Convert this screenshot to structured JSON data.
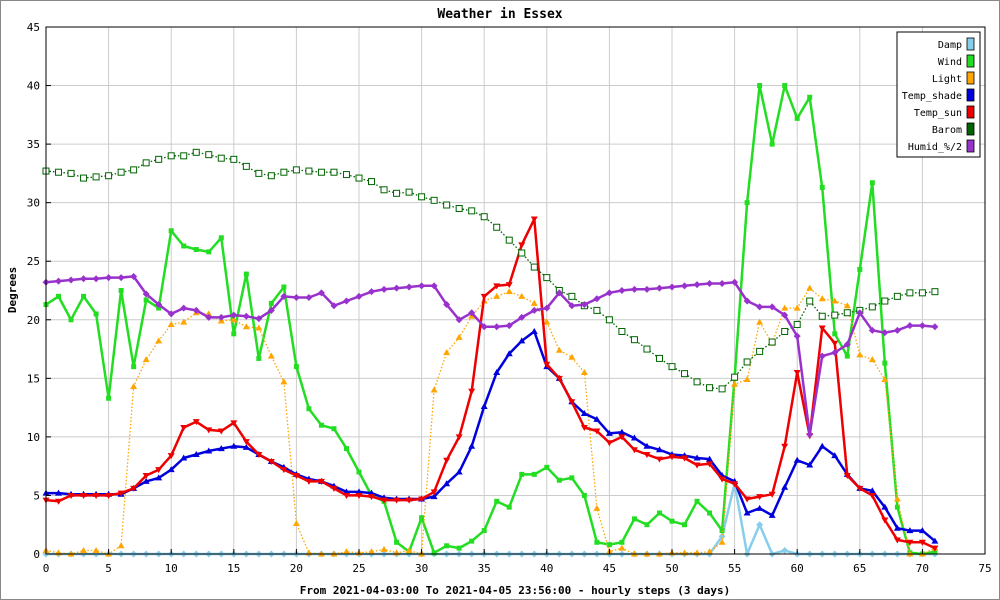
{
  "chart_data": {
    "type": "line",
    "title": "Weather in Essex",
    "xlabel": "From 2021-04-03:00 To 2021-04-05 23:56:00 - hourly steps (3 days)",
    "ylabel": "Degrees",
    "xlim": [
      0,
      75
    ],
    "ylim": [
      0,
      45
    ],
    "xticks": [
      0,
      5,
      10,
      15,
      20,
      25,
      30,
      35,
      40,
      45,
      50,
      55,
      60,
      65,
      70,
      75
    ],
    "yticks": [
      0,
      5,
      10,
      15,
      20,
      25,
      30,
      35,
      40,
      45
    ],
    "grid": true,
    "legend": "top-right",
    "x": [
      0,
      1,
      2,
      3,
      4,
      5,
      6,
      7,
      8,
      9,
      10,
      11,
      12,
      13,
      14,
      15,
      16,
      17,
      18,
      19,
      20,
      21,
      22,
      23,
      24,
      25,
      26,
      27,
      28,
      29,
      30,
      31,
      32,
      33,
      34,
      35,
      36,
      37,
      38,
      39,
      40,
      41,
      42,
      43,
      44,
      45,
      46,
      47,
      48,
      49,
      50,
      51,
      52,
      53,
      54,
      55,
      56,
      57,
      58,
      59,
      60,
      61,
      62,
      63,
      64,
      65,
      66,
      67,
      68,
      69,
      70,
      71
    ],
    "series": [
      {
        "name": "Damp",
        "color": "#87ceeb",
        "marker": "diamond",
        "style": "solid",
        "values": [
          0,
          0,
          0,
          0,
          0,
          0,
          0,
          0,
          0,
          0,
          0,
          0,
          0,
          0,
          0,
          0,
          0,
          0,
          0,
          0,
          0,
          0,
          0,
          0,
          0,
          0,
          0,
          0,
          0,
          0,
          0,
          0,
          0,
          0,
          0,
          0,
          0,
          0,
          0,
          0,
          0,
          0,
          0,
          0,
          0,
          0,
          0,
          0,
          0,
          0,
          0,
          0,
          0,
          0,
          1.5,
          6,
          0,
          2.5,
          0,
          0.3,
          0,
          0,
          0,
          0,
          0,
          0,
          0,
          0,
          0,
          0,
          0,
          0
        ]
      },
      {
        "name": "Wind",
        "color": "#22dd22",
        "marker": "square",
        "style": "solid",
        "values": [
          21.3,
          22,
          20,
          22,
          20.5,
          13.3,
          22.5,
          16,
          21.7,
          21,
          27.6,
          26.3,
          26,
          25.8,
          27,
          18.8,
          23.9,
          16.7,
          21.4,
          22.8,
          16,
          12.4,
          11,
          10.7,
          9,
          7,
          5,
          4.5,
          1,
          0.2,
          3.1,
          0.1,
          0.7,
          0.5,
          1.1,
          2,
          4.5,
          4,
          6.8,
          6.8,
          7.4,
          6.3,
          6.5,
          5,
          1,
          0.8,
          1,
          3,
          2.5,
          3.5,
          2.8,
          2.5,
          4.5,
          3.5,
          2,
          15,
          30,
          40,
          35,
          40,
          37.2,
          39,
          31.3,
          18.8,
          16.9,
          24.3,
          31.7,
          16.3,
          4,
          0.1,
          0,
          0.2
        ]
      },
      {
        "name": "Light",
        "color": "#ffa500",
        "marker": "triangle",
        "style": "dotted",
        "values": [
          0.3,
          0.1,
          0,
          0.3,
          0.3,
          0,
          0.7,
          14.3,
          16.6,
          18.2,
          19.6,
          19.8,
          20.6,
          20.5,
          19.9,
          20,
          19.4,
          19.3,
          16.9,
          14.7,
          2.6,
          0.1,
          0,
          0,
          0.2,
          0.1,
          0.2,
          0.4,
          0.1,
          0.3,
          0,
          14,
          17.2,
          18.5,
          20.3,
          21.6,
          22,
          22.4,
          22,
          21.4,
          19.8,
          17.4,
          16.8,
          15.5,
          3.9,
          0.2,
          0.5,
          0,
          0,
          0,
          0.1,
          0.1,
          0.1,
          0.2,
          1,
          14.5,
          14.9,
          19.8,
          18,
          21,
          21,
          22.7,
          21.8,
          21.6,
          21.2,
          17,
          16.6,
          14.9,
          4.7,
          0,
          0,
          0.5
        ]
      },
      {
        "name": "Temp_shade",
        "color": "#0000dd",
        "marker": "triangle",
        "style": "solid",
        "values": [
          5.2,
          5.2,
          5.1,
          5.1,
          5.1,
          5.1,
          5.1,
          5.6,
          6.2,
          6.5,
          7.2,
          8.2,
          8.5,
          8.8,
          9,
          9.2,
          9.1,
          8.5,
          7.9,
          7.4,
          6.8,
          6.4,
          6.2,
          5.8,
          5.3,
          5.3,
          5.2,
          4.8,
          4.7,
          4.7,
          4.7,
          4.9,
          6,
          7,
          9.2,
          12.6,
          15.5,
          17.1,
          18.2,
          19,
          16,
          15,
          13,
          12,
          11.5,
          10.3,
          10.4,
          9.9,
          9.2,
          8.9,
          8.5,
          8.4,
          8.2,
          8.1,
          6.7,
          6.2,
          3.5,
          3.9,
          3.3,
          5.7,
          8,
          7.6,
          9.2,
          8.4,
          6.8,
          5.6,
          5.4,
          4,
          2.2,
          2,
          2,
          1.1
        ]
      },
      {
        "name": "Temp_sun",
        "color": "#ee0000",
        "marker": "triangle-down",
        "style": "solid",
        "values": [
          4.6,
          4.5,
          5,
          5,
          5,
          5,
          5.2,
          5.6,
          6.7,
          7.2,
          8.4,
          10.8,
          11.3,
          10.6,
          10.5,
          11.2,
          9.6,
          8.5,
          7.9,
          7.2,
          6.7,
          6.2,
          6.2,
          5.6,
          5,
          5,
          4.9,
          4.6,
          4.6,
          4.6,
          4.7,
          5.3,
          8,
          10,
          13.9,
          22,
          22.9,
          23,
          26.4,
          28.6,
          16.2,
          15,
          13,
          10.8,
          10.5,
          9.5,
          10,
          8.9,
          8.5,
          8.1,
          8.3,
          8.2,
          7.6,
          7.7,
          6.4,
          6,
          4.7,
          4.9,
          5.1,
          9.2,
          15.5,
          10.1,
          19.3,
          18,
          6.7,
          5.6,
          5,
          2.9,
          1.2,
          1,
          1,
          0.5
        ]
      },
      {
        "name": "Barom",
        "color": "#006400",
        "marker": "square-open",
        "style": "dotted",
        "values": [
          32.7,
          32.6,
          32.5,
          32.1,
          32.2,
          32.3,
          32.6,
          32.8,
          33.4,
          33.7,
          34,
          34,
          34.3,
          34.1,
          33.8,
          33.7,
          33.1,
          32.5,
          32.3,
          32.6,
          32.8,
          32.7,
          32.6,
          32.6,
          32.4,
          32.1,
          31.8,
          31.1,
          30.8,
          30.9,
          30.5,
          30.2,
          29.8,
          29.5,
          29.3,
          28.8,
          27.9,
          26.8,
          25.7,
          24.5,
          23.6,
          22.5,
          22,
          21.2,
          20.8,
          20,
          19,
          18.3,
          17.5,
          16.7,
          16,
          15.4,
          14.7,
          14.2,
          14.1,
          15.1,
          16.4,
          17.3,
          18.1,
          19,
          19.6,
          21.6,
          20.3,
          20.4,
          20.6,
          20.8,
          21.1,
          21.6,
          22,
          22.3,
          22.3,
          22.4
        ]
      },
      {
        "name": "Humid_%/2",
        "color": "#9932cc",
        "marker": "diamond",
        "style": "solid",
        "values": [
          23.2,
          23.3,
          23.4,
          23.5,
          23.5,
          23.6,
          23.6,
          23.7,
          22.2,
          21.3,
          20.5,
          21,
          20.8,
          20.2,
          20.2,
          20.4,
          20.3,
          20.1,
          20.8,
          22,
          21.9,
          21.9,
          22.3,
          21.2,
          21.6,
          22,
          22.4,
          22.6,
          22.7,
          22.8,
          22.9,
          22.9,
          21.3,
          20,
          20.6,
          19.4,
          19.4,
          19.5,
          20.2,
          20.8,
          21,
          22.3,
          21.2,
          21.3,
          21.8,
          22.3,
          22.5,
          22.6,
          22.6,
          22.7,
          22.8,
          22.9,
          23,
          23.1,
          23.1,
          23.2,
          21.6,
          21.1,
          21.1,
          20.4,
          18.6,
          10.2,
          16.9,
          17.2,
          17.9,
          20.6,
          19.1,
          18.9,
          19.1,
          19.5,
          19.5,
          19.4
        ]
      }
    ]
  }
}
